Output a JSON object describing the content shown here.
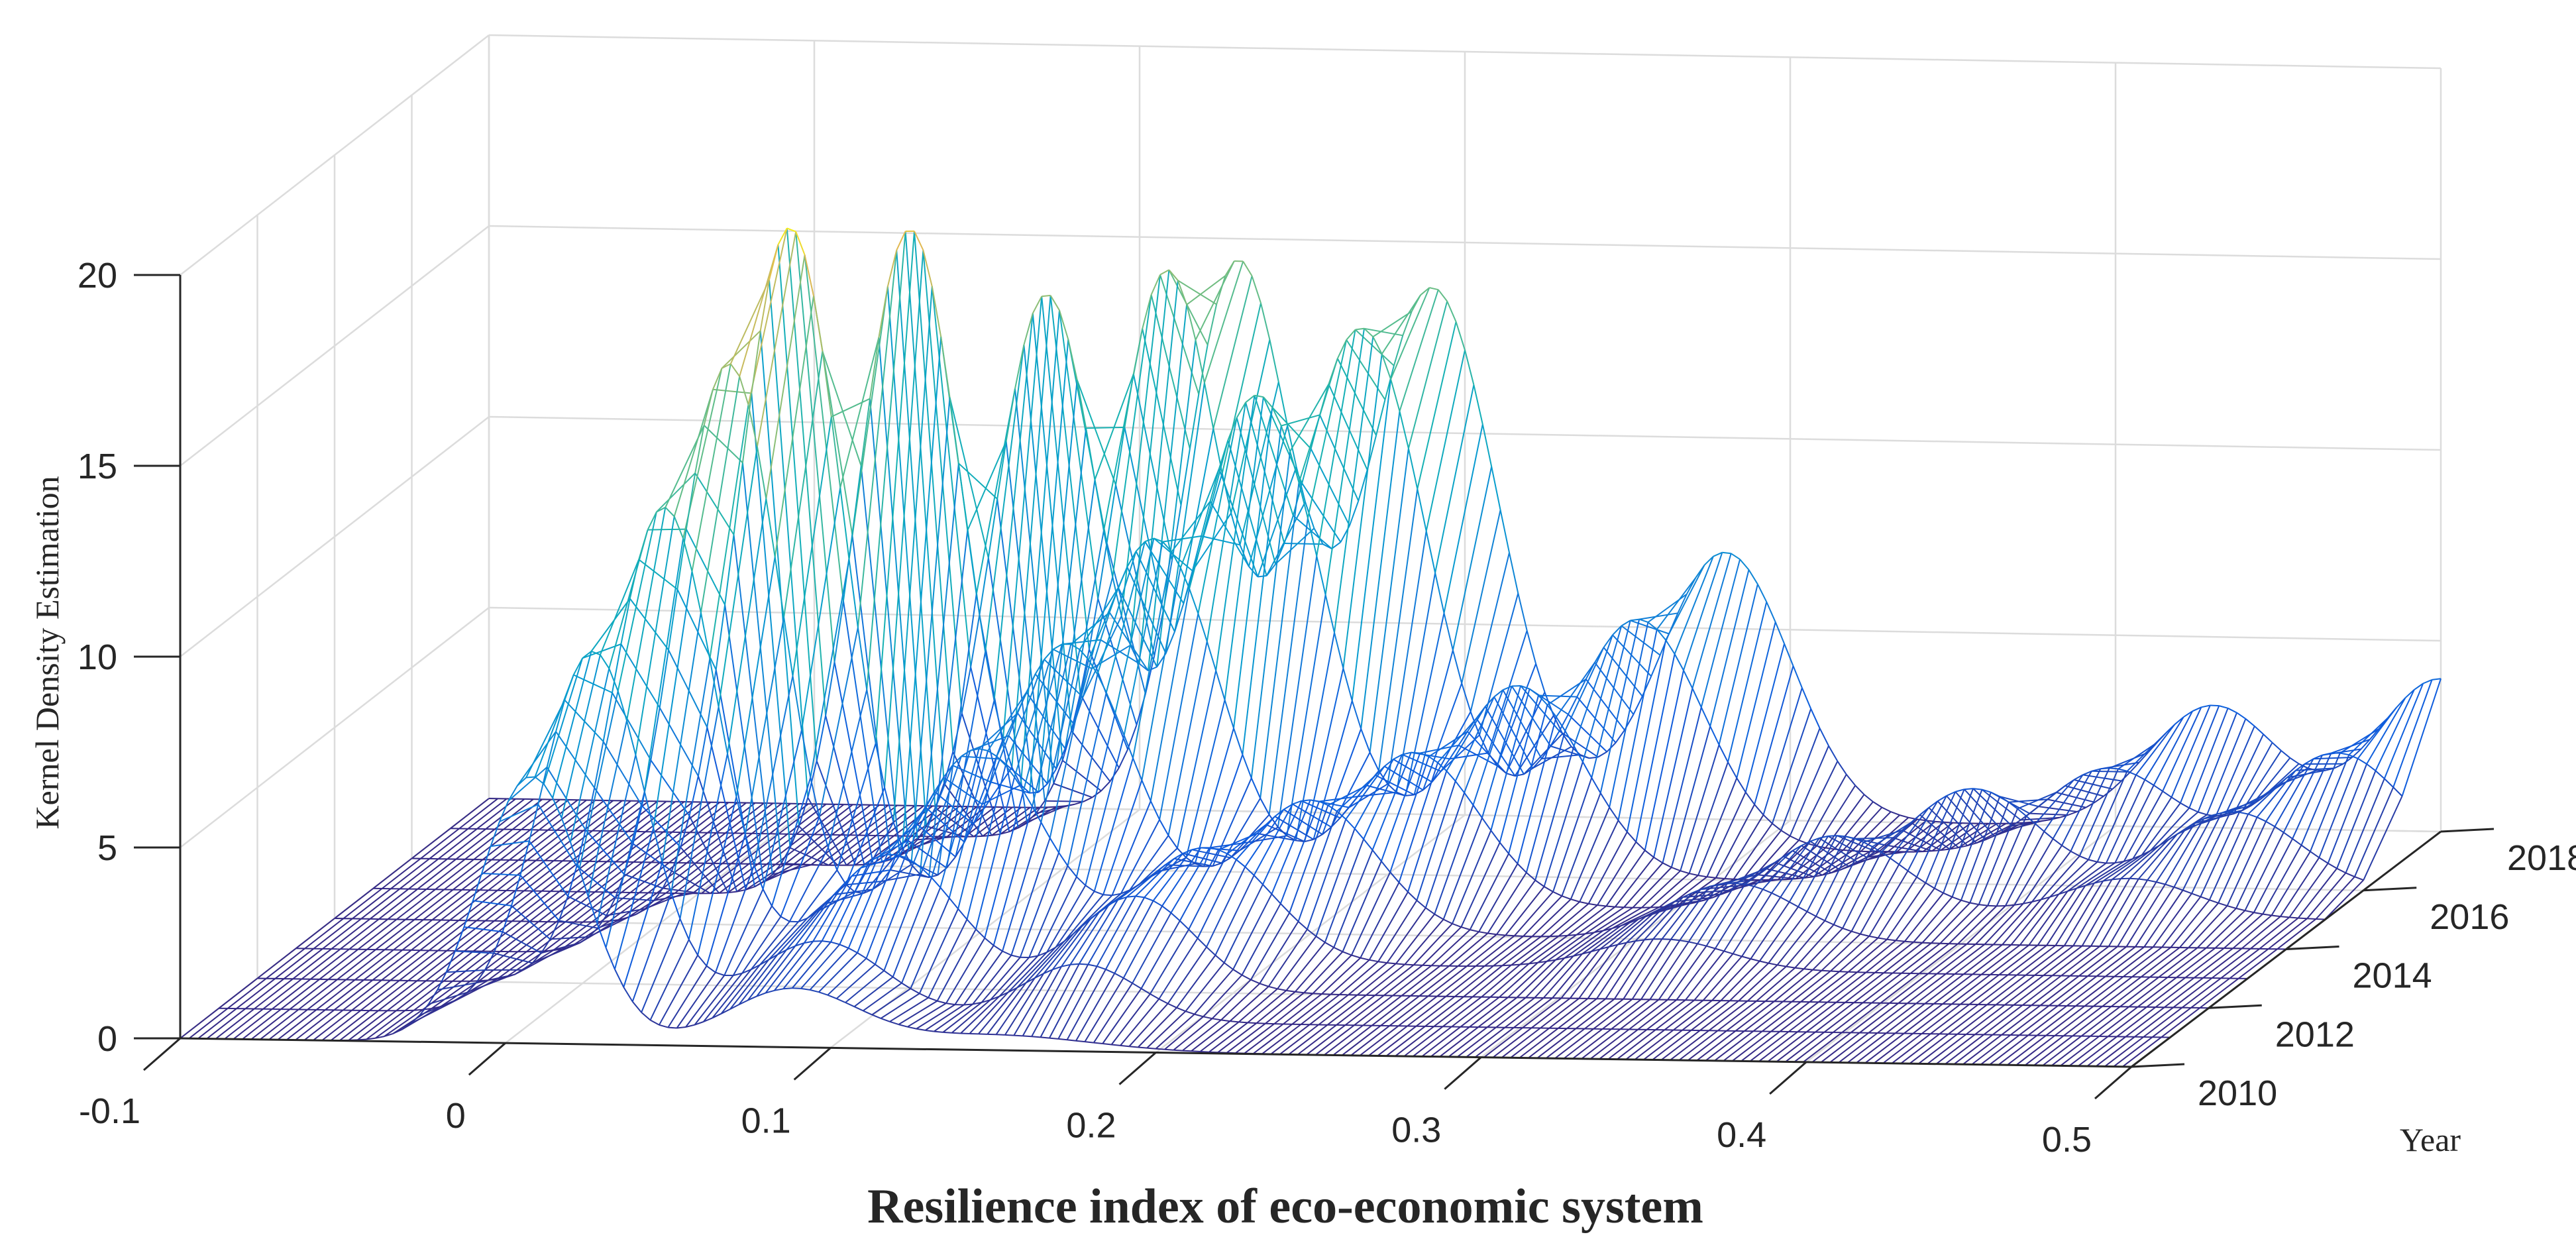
{
  "chart_data": {
    "type": "surface",
    "title": "",
    "xlabel": "Resilience index of eco-economic system",
    "ylabel": "Year",
    "zlabel": "Kernel Density Estimation",
    "xlim": [
      -0.1,
      0.5
    ],
    "ylim": [
      2010,
      2018
    ],
    "zlim": [
      0,
      20
    ],
    "x_ticks": [
      "-0.1",
      "0",
      "0.1",
      "0.2",
      "0.3",
      "0.4",
      "0.5"
    ],
    "y_ticks": [
      "2010",
      "2012",
      "2014",
      "2016",
      "2018"
    ],
    "z_ticks": [
      "0",
      "5",
      "10",
      "15",
      "20"
    ],
    "colormap": "parula",
    "years": [
      2010,
      2011,
      2012,
      2013,
      2014,
      2015,
      2016,
      2017,
      2018
    ],
    "density_components_note": "each year: list of [center, height, width] gaussian bumps of the kernel density curve",
    "series": [
      {
        "name": "2010",
        "peaks": [
          [
            0.008,
            7.0,
            0.016
          ],
          [
            0.088,
            1.5,
            0.02
          ],
          [
            0.15,
            0.4,
            0.03
          ]
        ]
      },
      {
        "name": "2011",
        "peaks": [
          [
            0.015,
            9.5,
            0.016
          ],
          [
            0.085,
            2.0,
            0.02
          ],
          [
            0.165,
            1.5,
            0.018
          ]
        ]
      },
      {
        "name": "2012",
        "peaks": [
          [
            0.025,
            12.5,
            0.016
          ],
          [
            0.095,
            3.5,
            0.02
          ],
          [
            0.17,
            2.5,
            0.018
          ]
        ]
      },
      {
        "name": "2013",
        "peaks": [
          [
            0.033,
            15.5,
            0.016
          ],
          [
            0.11,
            5.5,
            0.02
          ],
          [
            0.18,
            3.0,
            0.02
          ],
          [
            0.32,
            0.8,
            0.02
          ]
        ]
      },
      {
        "name": "2014",
        "peaks": [
          [
            0.04,
            18.3,
            0.016
          ],
          [
            0.125,
            7.5,
            0.02
          ],
          [
            0.2,
            3.5,
            0.02
          ],
          [
            0.33,
            1.5,
            0.02
          ]
        ]
      },
      {
        "name": "2015",
        "peaks": [
          [
            0.065,
            17.5,
            0.016
          ],
          [
            0.14,
            9.5,
            0.02
          ],
          [
            0.22,
            4.0,
            0.02
          ],
          [
            0.35,
            2.0,
            0.02
          ],
          [
            0.44,
            1.0,
            0.02
          ]
        ]
      },
      {
        "name": "2016",
        "peaks": [
          [
            0.095,
            15.0,
            0.016
          ],
          [
            0.16,
            12.5,
            0.02
          ],
          [
            0.24,
            5.0,
            0.02
          ],
          [
            0.38,
            2.5,
            0.02
          ],
          [
            0.46,
            2.0,
            0.02
          ]
        ]
      },
      {
        "name": "2017",
        "peaks": [
          [
            0.12,
            14.8,
            0.016
          ],
          [
            0.18,
            13.5,
            0.02
          ],
          [
            0.265,
            6.0,
            0.02
          ],
          [
            0.41,
            2.3,
            0.02
          ],
          [
            0.48,
            2.8,
            0.02
          ]
        ]
      },
      {
        "name": "2018",
        "peaks": [
          [
            0.13,
            14.3,
            0.016
          ],
          [
            0.19,
            13.8,
            0.02
          ],
          [
            0.28,
            7.0,
            0.02
          ],
          [
            0.43,
            3.2,
            0.02
          ],
          [
            0.5,
            4.0,
            0.02
          ]
        ]
      }
    ]
  }
}
